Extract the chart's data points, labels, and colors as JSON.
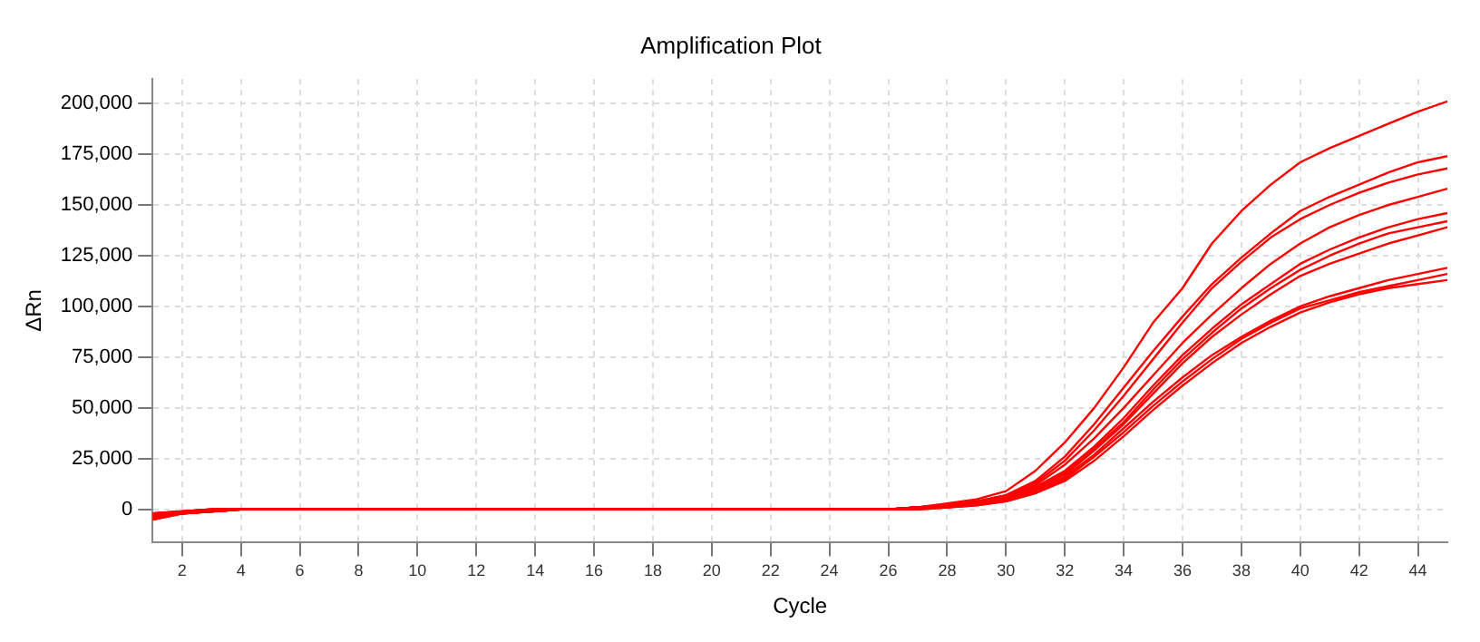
{
  "chart_data": {
    "type": "line",
    "title": "Amplification Plot",
    "xlabel": "Cycle",
    "ylabel": "ΔRn",
    "x": [
      1,
      2,
      3,
      4,
      5,
      6,
      7,
      8,
      9,
      10,
      11,
      12,
      13,
      14,
      15,
      16,
      17,
      18,
      19,
      20,
      21,
      22,
      23,
      24,
      25,
      26,
      27,
      28,
      29,
      30,
      31,
      32,
      33,
      34,
      35,
      36,
      37,
      38,
      39,
      40,
      41,
      42,
      43,
      44,
      45
    ],
    "xlim": [
      1,
      45
    ],
    "xticks": [
      2,
      4,
      6,
      8,
      10,
      12,
      14,
      16,
      18,
      20,
      22,
      24,
      26,
      28,
      30,
      32,
      34,
      36,
      38,
      40,
      42,
      44
    ],
    "ylim": [
      -16000,
      212000
    ],
    "yticks": [
      {
        "value": 0,
        "label": "0"
      },
      {
        "value": 25000,
        "label": "25,000"
      },
      {
        "value": 50000,
        "label": "50,000"
      },
      {
        "value": 75000,
        "label": "75,000"
      },
      {
        "value": 100000,
        "label": "100,000"
      },
      {
        "value": 125000,
        "label": "125,000"
      },
      {
        "value": 150000,
        "label": "150,000"
      },
      {
        "value": 175000,
        "label": "175,000"
      },
      {
        "value": 200000,
        "label": "200,000"
      }
    ],
    "grid": true,
    "legend": false,
    "marker": "none",
    "line_style": "solid",
    "series": [
      {
        "color": "#ff0000",
        "values": [
          -5000,
          -2000,
          -1000,
          0,
          0,
          0,
          0,
          0,
          0,
          0,
          0,
          0,
          0,
          0,
          0,
          0,
          0,
          0,
          0,
          0,
          0,
          0,
          0,
          0,
          0,
          0,
          1000,
          3000,
          5000,
          9000,
          19000,
          33000,
          50000,
          70000,
          92000,
          109000,
          131000,
          147000,
          160000,
          171000,
          178000,
          184000,
          190000,
          196000,
          201000
        ]
      },
      {
        "color": "#ff0000",
        "values": [
          -2000,
          -1000,
          0,
          0,
          0,
          0,
          0,
          0,
          0,
          0,
          0,
          0,
          0,
          0,
          0,
          0,
          0,
          0,
          0,
          0,
          0,
          0,
          0,
          0,
          0,
          0,
          1000,
          2000,
          4000,
          7000,
          14000,
          26000,
          42000,
          60000,
          78000,
          95000,
          111000,
          124000,
          136000,
          147000,
          154000,
          160000,
          166000,
          171000,
          174000
        ]
      },
      {
        "color": "#ff0000",
        "values": [
          -4000,
          -2000,
          -1000,
          0,
          0,
          0,
          0,
          0,
          0,
          0,
          0,
          0,
          0,
          0,
          0,
          0,
          0,
          0,
          0,
          0,
          0,
          0,
          0,
          0,
          0,
          0,
          1000,
          2000,
          4000,
          7000,
          13000,
          24000,
          39000,
          56000,
          74000,
          92000,
          109000,
          122000,
          134000,
          143000,
          150000,
          156000,
          161000,
          165000,
          168000
        ]
      },
      {
        "color": "#ff0000",
        "values": [
          -3000,
          -2000,
          -1000,
          0,
          0,
          0,
          0,
          0,
          0,
          0,
          0,
          0,
          0,
          0,
          0,
          0,
          0,
          0,
          0,
          0,
          0,
          0,
          0,
          0,
          0,
          0,
          1000,
          2000,
          4000,
          6000,
          12000,
          22000,
          35000,
          50000,
          66000,
          82000,
          96000,
          109000,
          121000,
          131000,
          139000,
          145000,
          150000,
          154000,
          158000
        ]
      },
      {
        "color": "#ff0000",
        "values": [
          -2000,
          -1000,
          0,
          0,
          0,
          0,
          0,
          0,
          0,
          0,
          0,
          0,
          0,
          0,
          0,
          0,
          0,
          0,
          0,
          0,
          0,
          0,
          0,
          0,
          0,
          0,
          1000,
          2000,
          3000,
          6000,
          11000,
          19000,
          31000,
          45000,
          61000,
          76000,
          89000,
          101000,
          111000,
          121000,
          128000,
          134000,
          139000,
          143000,
          146000
        ]
      },
      {
        "color": "#ff0000",
        "values": [
          -5000,
          -2000,
          -1000,
          0,
          0,
          0,
          0,
          0,
          0,
          0,
          0,
          0,
          0,
          0,
          0,
          0,
          0,
          0,
          0,
          0,
          0,
          0,
          0,
          0,
          0,
          0,
          1000,
          2000,
          3000,
          5000,
          10000,
          18000,
          30000,
          43000,
          59000,
          74000,
          87000,
          99000,
          109000,
          118000,
          125000,
          131000,
          136000,
          139000,
          142000
        ]
      },
      {
        "color": "#ff0000",
        "values": [
          -3000,
          -1000,
          0,
          0,
          0,
          0,
          0,
          0,
          0,
          0,
          0,
          0,
          0,
          0,
          0,
          0,
          0,
          0,
          0,
          0,
          0,
          0,
          0,
          0,
          0,
          0,
          1000,
          1000,
          3000,
          5000,
          10000,
          17000,
          29000,
          42000,
          57000,
          72000,
          85000,
          96000,
          106000,
          115000,
          121000,
          126000,
          131000,
          135000,
          139000
        ]
      },
      {
        "color": "#ff0000",
        "values": [
          -4000,
          -2000,
          -1000,
          0,
          0,
          0,
          0,
          0,
          0,
          0,
          0,
          0,
          0,
          0,
          0,
          0,
          0,
          0,
          0,
          0,
          0,
          0,
          0,
          0,
          0,
          0,
          1000,
          1000,
          3000,
          5000,
          9000,
          16000,
          27000,
          40000,
          53000,
          65000,
          76000,
          85000,
          93000,
          100000,
          105000,
          109000,
          113000,
          116000,
          119000
        ]
      },
      {
        "color": "#ff0000",
        "values": [
          -2000,
          -1000,
          0,
          0,
          0,
          0,
          0,
          0,
          0,
          0,
          0,
          0,
          0,
          0,
          0,
          0,
          0,
          0,
          0,
          0,
          0,
          0,
          0,
          0,
          0,
          0,
          0,
          1000,
          2000,
          4000,
          8000,
          15000,
          26000,
          38000,
          51000,
          63000,
          74000,
          84000,
          92000,
          99000,
          103000,
          107000,
          110000,
          113000,
          116000
        ]
      },
      {
        "color": "#ff0000",
        "values": [
          -3000,
          -2000,
          -1000,
          0,
          0,
          0,
          0,
          0,
          0,
          0,
          0,
          0,
          0,
          0,
          0,
          0,
          0,
          0,
          0,
          0,
          0,
          0,
          0,
          0,
          0,
          0,
          0,
          1000,
          2000,
          4000,
          8000,
          14000,
          24000,
          36000,
          49000,
          61000,
          72000,
          82000,
          90000,
          97000,
          102000,
          106000,
          109000,
          111000,
          113000
        ]
      }
    ]
  }
}
